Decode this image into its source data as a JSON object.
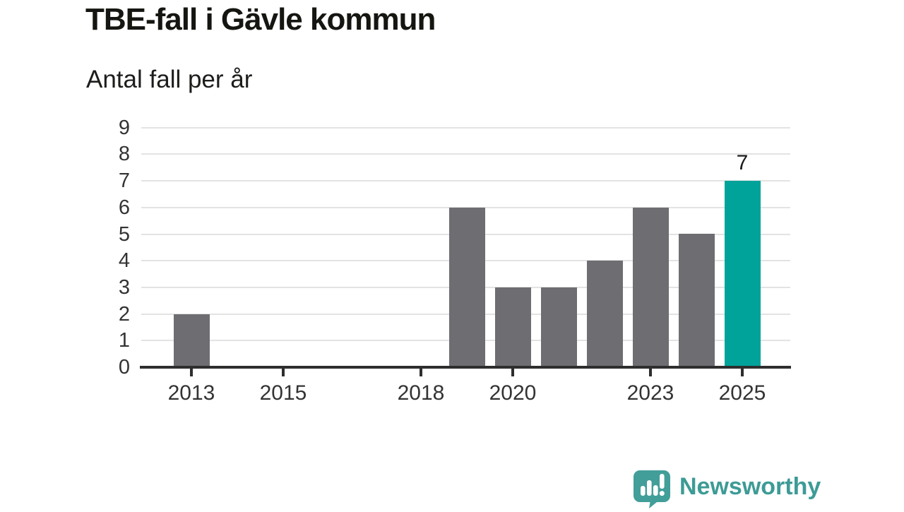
{
  "page": {
    "title": "TBE-fall i Gävle kommun",
    "subtitle": "Antal fall per år"
  },
  "chart_data": {
    "type": "bar",
    "title": "TBE-fall i Gävle kommun",
    "subtitle": "Antal fall per år",
    "categories": [
      2013,
      2014,
      2015,
      2016,
      2017,
      2018,
      2019,
      2020,
      2021,
      2022,
      2023,
      2024,
      2025
    ],
    "values": [
      2,
      0,
      0,
      0,
      0,
      0,
      6,
      3,
      3,
      4,
      6,
      5,
      7
    ],
    "highlight_category": 2025,
    "bar_label": {
      "category": 2025,
      "text": "7"
    },
    "xlabel": "",
    "ylabel": "",
    "xtick_labels": [
      "2013",
      "2015",
      "2018",
      "2020",
      "2023",
      "2025"
    ],
    "xtick_years": [
      2013,
      2015,
      2018,
      2020,
      2023,
      2025
    ],
    "ytick_labels": [
      "0",
      "1",
      "2",
      "3",
      "4",
      "5",
      "6",
      "7",
      "8",
      "9"
    ],
    "ylim": [
      0,
      9
    ],
    "grid": true,
    "legend": "none",
    "colors": {
      "bar": "#6D6D72",
      "highlight": "#00A39A",
      "gridline": "#E3E3E3",
      "axis": "#2E2E2E",
      "tick_text": "#333333"
    }
  },
  "footer": {
    "brand": "Newsworthy",
    "brand_color": "#3D9B96",
    "logo_icon": "newsworthy-speech-bubble-bar-chart-icon"
  }
}
